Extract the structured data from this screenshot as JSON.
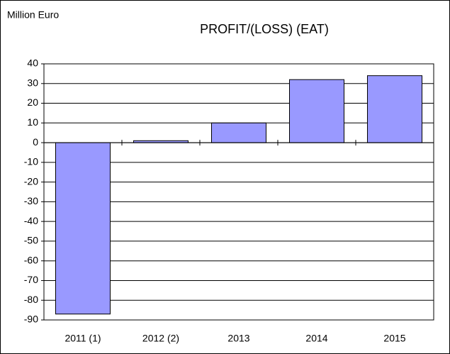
{
  "chart_data": {
    "type": "bar",
    "title": "PROFIT/(LOSS) (EAT)",
    "unit_label": "Million Euro",
    "categories": [
      "2011 (1)",
      "2012 (2)",
      "2013",
      "2014",
      "2015"
    ],
    "values": [
      -87,
      1,
      10,
      32,
      34
    ],
    "color": "#9999ff",
    "ylim": [
      -90,
      40
    ],
    "yticks": [
      -90,
      -80,
      -70,
      -60,
      -50,
      -40,
      -30,
      -20,
      -10,
      0,
      10,
      20,
      30,
      40
    ],
    "grid": true
  }
}
